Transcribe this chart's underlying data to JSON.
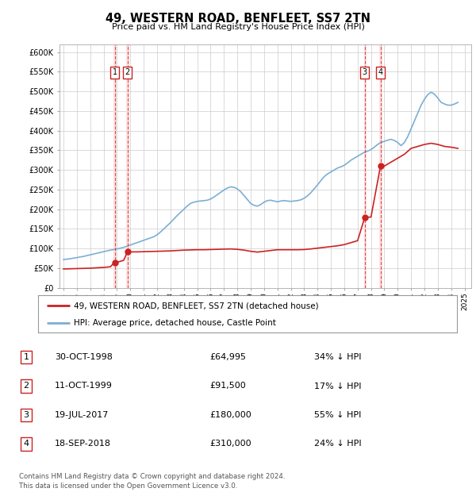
{
  "title": "49, WESTERN ROAD, BENFLEET, SS7 2TN",
  "subtitle": "Price paid vs. HM Land Registry's House Price Index (HPI)",
  "xlim": [
    1994.7,
    2025.5
  ],
  "ylim": [
    0,
    620000
  ],
  "yticks": [
    0,
    50000,
    100000,
    150000,
    200000,
    250000,
    300000,
    350000,
    400000,
    450000,
    500000,
    550000,
    600000
  ],
  "ytick_labels": [
    "£0",
    "£50K",
    "£100K",
    "£150K",
    "£200K",
    "£250K",
    "£300K",
    "£350K",
    "£400K",
    "£450K",
    "£500K",
    "£550K",
    "£600K"
  ],
  "transactions": [
    {
      "label": "1",
      "date_num": 1998.83,
      "price": 64995
    },
    {
      "label": "2",
      "date_num": 1999.78,
      "price": 91500
    },
    {
      "label": "3",
      "date_num": 2017.54,
      "price": 180000
    },
    {
      "label": "4",
      "date_num": 2018.71,
      "price": 310000
    }
  ],
  "hpi_color": "#7bafd4",
  "price_color": "#cc2222",
  "transaction_line_color": "#cc3333",
  "marker_box_color": "#cc2222",
  "background_color": "#ffffff",
  "grid_color": "#cccccc",
  "legend_label_price": "49, WESTERN ROAD, BENFLEET, SS7 2TN (detached house)",
  "legend_label_hpi": "HPI: Average price, detached house, Castle Point",
  "table_rows": [
    [
      "1",
      "30-OCT-1998",
      "£64,995",
      "34% ↓ HPI"
    ],
    [
      "2",
      "11-OCT-1999",
      "£91,500",
      "17% ↓ HPI"
    ],
    [
      "3",
      "19-JUL-2017",
      "£180,000",
      "55% ↓ HPI"
    ],
    [
      "4",
      "18-SEP-2018",
      "£310,000",
      "24% ↓ HPI"
    ]
  ],
  "footnote": "Contains HM Land Registry data © Crown copyright and database right 2024.\nThis data is licensed under the Open Government Licence v3.0.",
  "hpi_data_x": [
    1995.0,
    1995.25,
    1995.5,
    1995.75,
    1996.0,
    1996.25,
    1996.5,
    1996.75,
    1997.0,
    1997.25,
    1997.5,
    1997.75,
    1998.0,
    1998.25,
    1998.5,
    1998.75,
    1999.0,
    1999.25,
    1999.5,
    1999.75,
    2000.0,
    2000.25,
    2000.5,
    2000.75,
    2001.0,
    2001.25,
    2001.5,
    2001.75,
    2002.0,
    2002.25,
    2002.5,
    2002.75,
    2003.0,
    2003.25,
    2003.5,
    2003.75,
    2004.0,
    2004.25,
    2004.5,
    2004.75,
    2005.0,
    2005.25,
    2005.5,
    2005.75,
    2006.0,
    2006.25,
    2006.5,
    2006.75,
    2007.0,
    2007.25,
    2007.5,
    2007.75,
    2008.0,
    2008.25,
    2008.5,
    2008.75,
    2009.0,
    2009.25,
    2009.5,
    2009.75,
    2010.0,
    2010.25,
    2010.5,
    2010.75,
    2011.0,
    2011.25,
    2011.5,
    2011.75,
    2012.0,
    2012.25,
    2012.5,
    2012.75,
    2013.0,
    2013.25,
    2013.5,
    2013.75,
    2014.0,
    2014.25,
    2014.5,
    2014.75,
    2015.0,
    2015.25,
    2015.5,
    2015.75,
    2016.0,
    2016.25,
    2016.5,
    2016.75,
    2017.0,
    2017.25,
    2017.5,
    2017.75,
    2018.0,
    2018.25,
    2018.5,
    2018.75,
    2019.0,
    2019.25,
    2019.5,
    2019.75,
    2020.0,
    2020.25,
    2020.5,
    2020.75,
    2021.0,
    2021.25,
    2021.5,
    2021.75,
    2022.0,
    2022.25,
    2022.5,
    2022.75,
    2023.0,
    2023.25,
    2023.5,
    2023.75,
    2024.0,
    2024.25,
    2024.5
  ],
  "hpi_data_y": [
    72000,
    73000,
    74000,
    75500,
    77000,
    78500,
    80000,
    82000,
    84000,
    86000,
    88000,
    90000,
    92000,
    94000,
    96000,
    97500,
    99000,
    101000,
    103000,
    106000,
    109000,
    112000,
    115000,
    118000,
    121000,
    124000,
    127000,
    130000,
    135000,
    142000,
    150000,
    158000,
    166000,
    175000,
    184000,
    192000,
    200000,
    208000,
    215000,
    218000,
    220000,
    221000,
    222000,
    223000,
    226000,
    231000,
    237000,
    243000,
    249000,
    254000,
    257000,
    256000,
    252000,
    245000,
    235000,
    225000,
    215000,
    210000,
    208000,
    212000,
    218000,
    222000,
    223000,
    221000,
    219000,
    221000,
    222000,
    221000,
    220000,
    221000,
    222000,
    224000,
    228000,
    234000,
    242000,
    252000,
    262000,
    273000,
    283000,
    290000,
    295000,
    300000,
    305000,
    308000,
    312000,
    318000,
    325000,
    330000,
    335000,
    340000,
    345000,
    348000,
    352000,
    358000,
    365000,
    370000,
    373000,
    376000,
    378000,
    375000,
    370000,
    362000,
    370000,
    385000,
    405000,
    425000,
    445000,
    465000,
    480000,
    492000,
    498000,
    493000,
    483000,
    472000,
    468000,
    465000,
    465000,
    468000,
    472000
  ],
  "price_data_x": [
    1995.0,
    1995.5,
    1996.0,
    1996.5,
    1997.0,
    1997.5,
    1998.0,
    1998.5,
    1998.83,
    1999.0,
    1999.5,
    1999.78,
    2000.0,
    2000.5,
    2001.0,
    2001.5,
    2002.0,
    2002.5,
    2003.0,
    2003.5,
    2004.0,
    2004.5,
    2005.0,
    2005.5,
    2006.0,
    2006.5,
    2007.0,
    2007.5,
    2008.0,
    2008.5,
    2009.0,
    2009.5,
    2010.0,
    2010.5,
    2011.0,
    2011.5,
    2012.0,
    2012.5,
    2013.0,
    2013.5,
    2014.0,
    2014.5,
    2015.0,
    2015.5,
    2016.0,
    2016.5,
    2017.0,
    2017.54,
    2018.0,
    2018.71,
    2019.0,
    2019.5,
    2020.0,
    2020.5,
    2021.0,
    2021.5,
    2022.0,
    2022.5,
    2023.0,
    2023.5,
    2024.0,
    2024.5
  ],
  "price_data_y": [
    48000,
    48500,
    49000,
    49500,
    50000,
    51000,
    52000,
    53500,
    64995,
    64995,
    70000,
    91500,
    91500,
    91500,
    92000,
    92500,
    93000,
    93500,
    94000,
    95000,
    96000,
    96500,
    97000,
    97000,
    97500,
    98000,
    98500,
    99000,
    98000,
    96000,
    93000,
    91000,
    93000,
    95000,
    97000,
    97000,
    97000,
    97000,
    97500,
    99000,
    101000,
    103000,
    105000,
    107000,
    110000,
    115000,
    120000,
    180000,
    180000,
    310000,
    310000,
    320000,
    330000,
    340000,
    355000,
    360000,
    365000,
    368000,
    365000,
    360000,
    358000,
    355000
  ]
}
